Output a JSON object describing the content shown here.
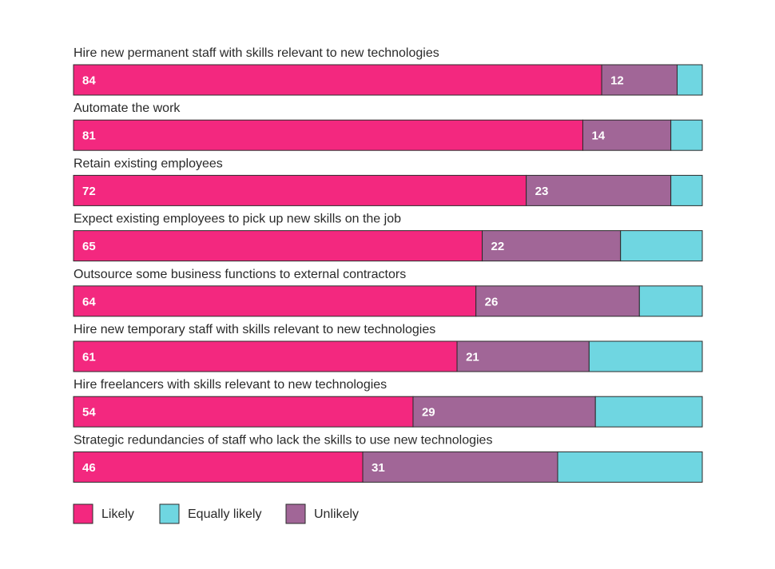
{
  "chart_data": {
    "type": "bar",
    "orientation": "horizontal",
    "stacked": true,
    "title": "",
    "xlabel": "",
    "ylabel": "",
    "categories": [
      "Hire new permanent staff with skills relevant to new technologies",
      "Automate the work",
      "Retain existing employees",
      "Expect existing employees to pick up new skills on the job",
      "Outsource some business functions to external contractors",
      "Hire new temporary staff with skills relevant to new technologies",
      "Hire freelancers with skills relevant to new technologies",
      "Strategic redundancies of staff who lack the skills to use new technologies"
    ],
    "series": [
      {
        "name": "Likely",
        "color": "#f3287f",
        "values": [
          84,
          81,
          72,
          65,
          64,
          61,
          54,
          46
        ],
        "show_labels": true
      },
      {
        "name": "Unlikely",
        "color": "#a16697",
        "values": [
          12,
          14,
          23,
          22,
          26,
          21,
          29,
          31
        ],
        "show_labels": true
      },
      {
        "name": "Equally likely",
        "color": "#6fd6e1",
        "values": [
          4,
          5,
          5,
          13,
          10,
          18,
          17,
          23
        ],
        "show_labels": false
      }
    ],
    "xlim": [
      0,
      100
    ],
    "grid": false,
    "legend": {
      "position": "bottom-left",
      "order": [
        "Likely",
        "Equally likely",
        "Unlikely"
      ]
    }
  }
}
